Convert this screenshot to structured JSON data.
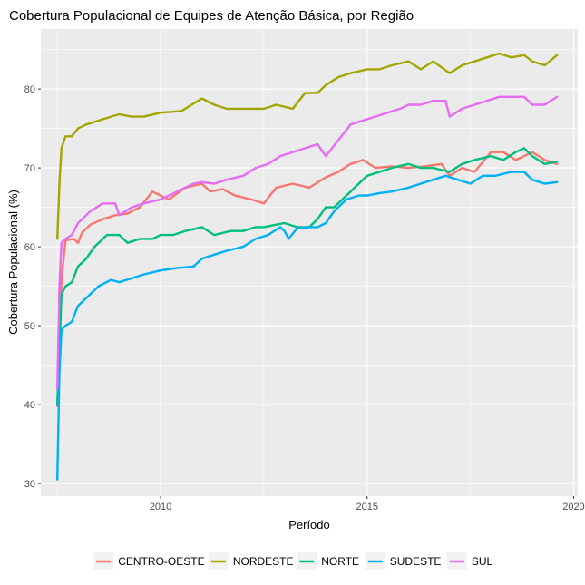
{
  "chart_data": {
    "type": "line",
    "title": "Cobertura Populacional de Equipes de Atenção Básica, por Região",
    "xlabel": "Período",
    "ylabel": "Cobertura Populacional (%)",
    "xlim": [
      2007.1,
      2020.1
    ],
    "ylim": [
      28.4,
      87.6
    ],
    "x_ticks": [
      2010,
      2015,
      2020
    ],
    "y_ticks": [
      30,
      40,
      50,
      60,
      70,
      80
    ],
    "grid": true,
    "legend_position": "bottom",
    "series": [
      {
        "name": "CENTRO-OESTE",
        "color": "#F8766D",
        "x": [
          2007.5,
          2007.6,
          2007.7,
          2007.9,
          2008.0,
          2008.1,
          2008.3,
          2008.6,
          2008.9,
          2009.2,
          2009.5,
          2009.8,
          2010.2,
          2010.6,
          2011.0,
          2011.2,
          2011.5,
          2011.8,
          2012.2,
          2012.5,
          2012.8,
          2013.2,
          2013.6,
          2014.0,
          2014.3,
          2014.6,
          2014.9,
          2015.2,
          2015.6,
          2016.0,
          2016.4,
          2016.8,
          2017.0,
          2017.3,
          2017.6,
          2018.0,
          2018.3,
          2018.6,
          2019.0,
          2019.3,
          2019.6
        ],
        "values": [
          39.8,
          56.0,
          60.8,
          61.0,
          60.5,
          61.8,
          62.8,
          63.5,
          64.0,
          64.2,
          65.0,
          67.0,
          66.0,
          67.5,
          68.0,
          67.0,
          67.3,
          66.5,
          66.0,
          65.5,
          67.5,
          68.0,
          67.5,
          68.8,
          69.5,
          70.5,
          71.0,
          70.0,
          70.2,
          70.0,
          70.2,
          70.5,
          69.0,
          70.0,
          69.5,
          72.0,
          72.0,
          71.0,
          72.0,
          71.0,
          70.5
        ]
      },
      {
        "name": "NORDESTE",
        "color": "#A3A500",
        "x": [
          2007.5,
          2007.55,
          2007.6,
          2007.7,
          2007.85,
          2008.0,
          2008.2,
          2008.5,
          2008.8,
          2009.0,
          2009.3,
          2009.6,
          2010.0,
          2010.5,
          2011.0,
          2011.3,
          2011.6,
          2012.0,
          2012.5,
          2012.8,
          2013.2,
          2013.5,
          2013.8,
          2014.0,
          2014.3,
          2014.6,
          2015.0,
          2015.3,
          2015.6,
          2016.0,
          2016.3,
          2016.6,
          2017.0,
          2017.3,
          2017.6,
          2017.9,
          2018.2,
          2018.5,
          2018.8,
          2019.0,
          2019.3,
          2019.6
        ],
        "values": [
          61.0,
          68.0,
          72.5,
          74.0,
          74.0,
          75.0,
          75.5,
          76.0,
          76.5,
          76.8,
          76.5,
          76.5,
          77.0,
          77.2,
          78.8,
          78.0,
          77.5,
          77.5,
          77.5,
          78.0,
          77.5,
          79.5,
          79.5,
          80.5,
          81.5,
          82.0,
          82.5,
          82.5,
          83.0,
          83.5,
          82.5,
          83.5,
          82.0,
          83.0,
          83.5,
          84.0,
          84.5,
          84.0,
          84.3,
          83.5,
          83.0,
          84.3
        ]
      },
      {
        "name": "NORTE",
        "color": "#00BF7D",
        "x": [
          2007.5,
          2007.6,
          2007.7,
          2007.85,
          2008.0,
          2008.2,
          2008.4,
          2008.7,
          2009.0,
          2009.2,
          2009.5,
          2009.8,
          2010.0,
          2010.3,
          2010.6,
          2011.0,
          2011.3,
          2011.7,
          2012.0,
          2012.3,
          2012.5,
          2012.8,
          2013.0,
          2013.3,
          2013.6,
          2013.8,
          2014.0,
          2014.2,
          2014.5,
          2014.8,
          2015.0,
          2015.3,
          2015.6,
          2016.0,
          2016.3,
          2016.6,
          2017.0,
          2017.3,
          2017.6,
          2018.0,
          2018.3,
          2018.6,
          2018.8,
          2019.0,
          2019.3,
          2019.6
        ],
        "values": [
          40.0,
          54.0,
          55.0,
          55.5,
          57.5,
          58.5,
          60.0,
          61.5,
          61.5,
          60.5,
          61.0,
          61.0,
          61.5,
          61.5,
          62.0,
          62.5,
          61.5,
          62.0,
          62.0,
          62.5,
          62.5,
          62.8,
          63.0,
          62.5,
          62.5,
          63.5,
          65.0,
          65.0,
          66.5,
          68.0,
          69.0,
          69.5,
          70.0,
          70.5,
          70.0,
          70.0,
          69.5,
          70.5,
          71.0,
          71.5,
          71.0,
          72.0,
          72.5,
          71.5,
          70.5,
          70.8
        ]
      },
      {
        "name": "SUDESTE",
        "color": "#00B0F6",
        "x": [
          2007.5,
          2007.55,
          2007.6,
          2007.7,
          2007.85,
          2008.0,
          2008.2,
          2008.5,
          2008.8,
          2009.0,
          2009.3,
          2009.6,
          2010.0,
          2010.4,
          2010.8,
          2011.0,
          2011.3,
          2011.6,
          2012.0,
          2012.3,
          2012.6,
          2012.9,
          2013.0,
          2013.1,
          2013.3,
          2013.6,
          2013.8,
          2014.0,
          2014.2,
          2014.5,
          2014.8,
          2015.0,
          2015.3,
          2015.6,
          2016.0,
          2016.3,
          2016.6,
          2016.9,
          2017.2,
          2017.5,
          2017.8,
          2018.1,
          2018.5,
          2018.8,
          2019.0,
          2019.3,
          2019.6
        ],
        "values": [
          30.5,
          44.0,
          49.5,
          50.0,
          50.5,
          52.5,
          53.5,
          55.0,
          55.8,
          55.5,
          56.0,
          56.5,
          57.0,
          57.3,
          57.5,
          58.5,
          59.0,
          59.5,
          60.0,
          61.0,
          61.5,
          62.5,
          62.0,
          61.0,
          62.3,
          62.5,
          62.5,
          63.0,
          64.5,
          66.0,
          66.5,
          66.5,
          66.8,
          67.0,
          67.5,
          68.0,
          68.5,
          69.0,
          68.5,
          68.0,
          69.0,
          69.0,
          69.5,
          69.5,
          68.5,
          68.0,
          68.2
        ]
      },
      {
        "name": "SUL",
        "color": "#E76BF3",
        "x": [
          2007.5,
          2007.55,
          2007.6,
          2007.7,
          2007.85,
          2008.0,
          2008.3,
          2008.6,
          2008.9,
          2009.0,
          2009.3,
          2009.6,
          2010.0,
          2010.4,
          2010.8,
          2011.0,
          2011.3,
          2011.6,
          2012.0,
          2012.3,
          2012.6,
          2012.9,
          2013.2,
          2013.5,
          2013.8,
          2014.0,
          2014.3,
          2014.6,
          2014.9,
          2015.2,
          2015.5,
          2015.8,
          2016.0,
          2016.3,
          2016.6,
          2016.9,
          2017.0,
          2017.3,
          2017.6,
          2017.9,
          2018.2,
          2018.5,
          2018.8,
          2019.0,
          2019.3,
          2019.6
        ],
        "values": [
          42.0,
          55.0,
          60.5,
          61.0,
          61.5,
          63.0,
          64.5,
          65.5,
          65.5,
          64.0,
          65.0,
          65.5,
          66.0,
          67.0,
          68.0,
          68.2,
          68.0,
          68.5,
          69.0,
          70.0,
          70.5,
          71.5,
          72.0,
          72.5,
          73.0,
          71.5,
          73.5,
          75.5,
          76.0,
          76.5,
          77.0,
          77.5,
          78.0,
          78.0,
          78.5,
          78.5,
          76.5,
          77.5,
          78.0,
          78.5,
          79.0,
          79.0,
          79.0,
          78.0,
          78.0,
          79.0
        ]
      }
    ]
  }
}
